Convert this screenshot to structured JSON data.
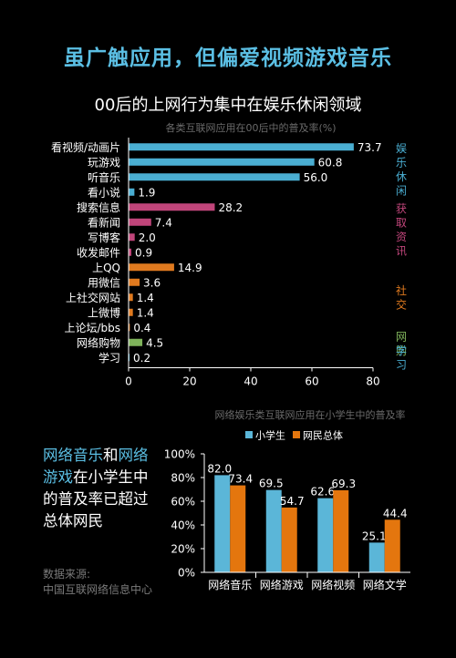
{
  "headline": "虽广触应用，但偏爱视频游戏音乐",
  "subhead": "00后的上网行为集中在娱乐休闲领域",
  "colors": {
    "entertainment": "#4aaed2",
    "info": "#c0457a",
    "social": "#e07a1f",
    "shopping": "#7fb35b",
    "study": "#4aaed2",
    "pupil": "#5bb6d8",
    "overall": "#e4760e",
    "axis": "#ffffff",
    "headline": "#5bbfe4"
  },
  "chart_data": [
    {
      "type": "bar",
      "orientation": "horizontal",
      "title": "各类互联网应用在00后中的普及率(%)",
      "categories": [
        "看视频/动画片",
        "玩游戏",
        "听音乐",
        "看小说",
        "搜索信息",
        "看新闻",
        "写博客",
        "收发邮件",
        "上QQ",
        "用微信",
        "上社交网站",
        "上微博",
        "上论坛/bbs",
        "网络购物",
        "学习"
      ],
      "values": [
        73.7,
        60.8,
        56.0,
        1.9,
        28.2,
        7.4,
        2.0,
        0.9,
        14.9,
        3.6,
        1.4,
        1.4,
        0.4,
        4.5,
        0.2
      ],
      "value_labels": [
        "73.7",
        "60.8",
        "56.0",
        "1.9",
        "28.2",
        "7.4",
        "2.0",
        "0.9",
        "14.9",
        "3.6",
        "1.4",
        "1.4",
        "0.4",
        "4.5",
        "0.2"
      ],
      "groups": [
        "entertainment",
        "entertainment",
        "entertainment",
        "entertainment",
        "info",
        "info",
        "info",
        "info",
        "social",
        "social",
        "social",
        "social",
        "social",
        "shopping",
        "study"
      ],
      "xlim": [
        0,
        80
      ],
      "xticks": [
        "0",
        "20",
        "40",
        "60",
        "80"
      ],
      "group_labels": [
        {
          "text": "娱乐休闲",
          "group": "entertainment",
          "first": 0,
          "last": 3
        },
        {
          "text": "获取资讯",
          "group": "info",
          "first": 4,
          "last": 7
        },
        {
          "text": "社交",
          "group": "social",
          "first": 8,
          "last": 12
        },
        {
          "text": "网购",
          "group": "shopping",
          "first": 13,
          "last": 13
        },
        {
          "text": "学习",
          "group": "study",
          "first": 14,
          "last": 14
        }
      ]
    },
    {
      "type": "bar",
      "title": "网络娱乐类互联网应用在小学生中的普及率",
      "categories": [
        "网络音乐",
        "网络游戏",
        "网络视频",
        "网络文学"
      ],
      "series": [
        {
          "name": "小学生",
          "values": [
            82.0,
            69.5,
            62.6,
            25.1
          ],
          "labels": [
            "82.0",
            "69.5",
            "62.6",
            "25.1"
          ]
        },
        {
          "name": "网民总体",
          "values": [
            73.4,
            54.7,
            69.3,
            44.4
          ],
          "labels": [
            "73.4",
            "54.7",
            "69.3",
            "44.4"
          ]
        }
      ],
      "ylim": [
        0,
        100
      ],
      "yticks": [
        "0%",
        "20%",
        "40%",
        "60%",
        "80%",
        "100%"
      ],
      "legend": "top"
    }
  ],
  "side_text": {
    "hl1": "网络音乐",
    "t1": "和",
    "hl2": "网络游戏",
    "t2": "在小学生中的普及率已超过总体网民"
  },
  "source": {
    "line1": "数据来源:",
    "line2": "中国互联网络信息中心"
  }
}
